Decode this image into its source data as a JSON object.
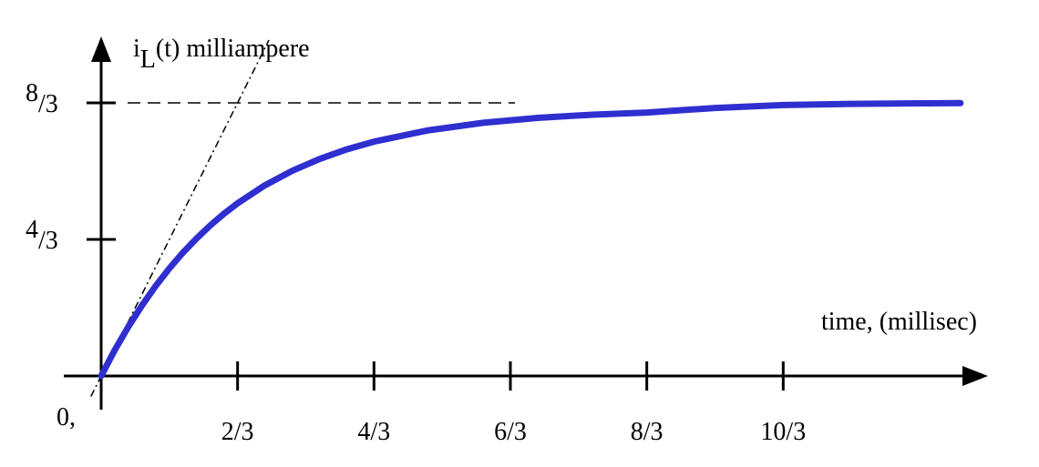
{
  "chart_data": {
    "type": "line",
    "ylabel": {
      "symbol": "i",
      "subscript": "L",
      "rest": "(t) milliampere"
    },
    "xlabel": "time, (millisec)",
    "x_ticks": [
      {
        "value": 0.6667,
        "label": "2/3"
      },
      {
        "value": 1.3333,
        "label": "4/3"
      },
      {
        "value": 2.0,
        "label": "6/3"
      },
      {
        "value": 2.6667,
        "label": "8/3"
      },
      {
        "value": 3.3333,
        "label": "10/3"
      }
    ],
    "y_ticks": [
      {
        "value": 1.3333,
        "num": "4",
        "den": "/3"
      },
      {
        "value": 2.6667,
        "num": "8",
        "den": "/3"
      }
    ],
    "origin_label": "0,",
    "xlim": [
      0,
      4.4
    ],
    "ylim": [
      0,
      3.25
    ],
    "asymptote": 2.6667,
    "time_constant": 0.6667,
    "series": [
      {
        "color": "#2f2fd0",
        "x": [
          0,
          0.0667,
          0.1333,
          0.2,
          0.2667,
          0.3333,
          0.4,
          0.4667,
          0.5333,
          0.6,
          0.6667,
          0.8,
          0.9333,
          1.0667,
          1.2,
          1.3333,
          1.6,
          1.8667,
          2.1333,
          2.4,
          2.6667,
          3.0,
          3.3333,
          3.6667,
          4.0,
          4.2
        ],
        "y": [
          0,
          0.254,
          0.483,
          0.691,
          0.88,
          1.05,
          1.205,
          1.344,
          1.47,
          1.584,
          1.686,
          1.861,
          2.003,
          2.118,
          2.212,
          2.288,
          2.399,
          2.472,
          2.52,
          2.551,
          2.572,
          2.617,
          2.645,
          2.657,
          2.662,
          2.664
        ]
      }
    ],
    "tangent": {
      "from_x": -0.05,
      "to_x": 0.82,
      "style": "dash-dot"
    },
    "grid": false
  }
}
